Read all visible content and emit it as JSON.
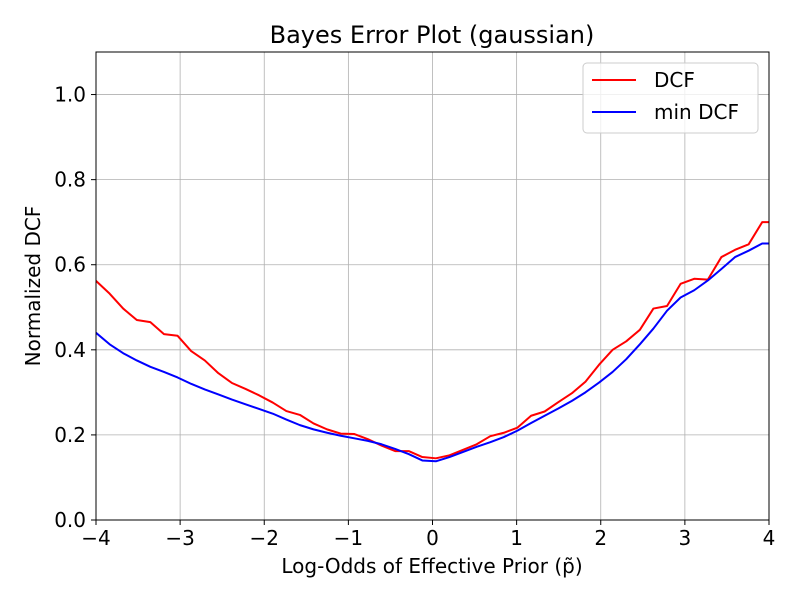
{
  "chart_data": {
    "type": "line",
    "title": "Bayes Error Plot (gaussian)",
    "xlabel": "Log-Odds of Effective Prior (p̃)",
    "ylabel": "Normalized DCF",
    "xlim": [
      -4,
      4
    ],
    "ylim": [
      0,
      1.1
    ],
    "grid": true,
    "legend_position": "top-right",
    "x_ticks": [
      -4,
      -3,
      -2,
      -1,
      0,
      1,
      2,
      3,
      4
    ],
    "x_tick_labels": [
      "−4",
      "−3",
      "−2",
      "−1",
      "0",
      "1",
      "2",
      "3",
      "4"
    ],
    "y_ticks": [
      0.0,
      0.2,
      0.4,
      0.6,
      0.8,
      1.0
    ],
    "y_tick_labels": [
      "0.0",
      "0.2",
      "0.4",
      "0.6",
      "0.8",
      "1.0"
    ],
    "x": [
      -4.0,
      -3.838,
      -3.677,
      -3.515,
      -3.354,
      -3.192,
      -3.03,
      -2.869,
      -2.707,
      -2.545,
      -2.384,
      -2.222,
      -2.061,
      -1.899,
      -1.737,
      -1.576,
      -1.414,
      -1.253,
      -1.091,
      -0.929,
      -0.768,
      -0.606,
      -0.444,
      -0.283,
      -0.121,
      0.04,
      0.202,
      0.364,
      0.525,
      0.687,
      0.848,
      1.01,
      1.172,
      1.333,
      1.495,
      1.657,
      1.818,
      1.98,
      2.141,
      2.303,
      2.465,
      2.626,
      2.788,
      2.949,
      3.111,
      3.273,
      3.434,
      3.596,
      3.758,
      3.919,
      4.0
    ],
    "series": [
      {
        "name": "DCF",
        "color": "#ff0000",
        "values": [
          0.562,
          0.532,
          0.497,
          0.47,
          0.465,
          0.437,
          0.433,
          0.397,
          0.375,
          0.345,
          0.322,
          0.308,
          0.293,
          0.276,
          0.256,
          0.247,
          0.227,
          0.213,
          0.203,
          0.202,
          0.19,
          0.175,
          0.162,
          0.162,
          0.148,
          0.145,
          0.152,
          0.165,
          0.178,
          0.197,
          0.205,
          0.217,
          0.245,
          0.255,
          0.277,
          0.298,
          0.325,
          0.365,
          0.4,
          0.42,
          0.447,
          0.497,
          0.503,
          0.555,
          0.567,
          0.565,
          0.618,
          0.635,
          0.648,
          0.7,
          0.7
        ]
      },
      {
        "name": "min DCF",
        "color": "#0000ff",
        "values": [
          0.44,
          0.413,
          0.392,
          0.375,
          0.36,
          0.348,
          0.335,
          0.32,
          0.307,
          0.295,
          0.283,
          0.272,
          0.261,
          0.25,
          0.236,
          0.223,
          0.213,
          0.205,
          0.198,
          0.192,
          0.186,
          0.178,
          0.167,
          0.155,
          0.14,
          0.138,
          0.148,
          0.16,
          0.172,
          0.183,
          0.195,
          0.21,
          0.228,
          0.245,
          0.262,
          0.28,
          0.3,
          0.323,
          0.348,
          0.378,
          0.413,
          0.45,
          0.492,
          0.523,
          0.54,
          0.563,
          0.59,
          0.618,
          0.633,
          0.65,
          0.65
        ]
      }
    ]
  }
}
